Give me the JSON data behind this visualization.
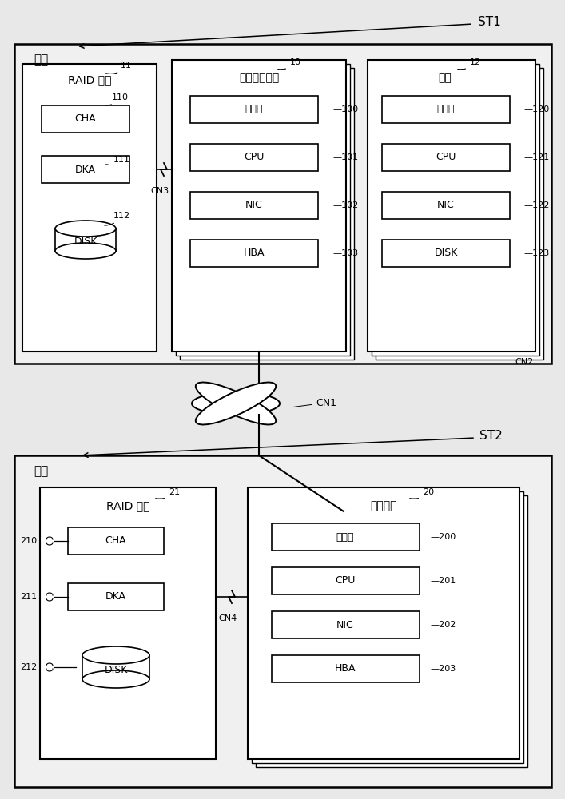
{
  "bg_color": "#e8e8e8",
  "white": "#ffffff",
  "light_gray": "#f0f0f0",
  "black": "#000000",
  "st1_label": "ST1",
  "st2_label": "ST2",
  "cn1_label": "CN1",
  "cn2_label": "CN2",
  "cn3_label": "CN3",
  "cn4_label": "CN4",
  "top_section_label": "边缘",
  "bottom_section_label": "核心",
  "raid_top_label": "RAID 系统",
  "raid_bottom_label": "RAID 系统",
  "file_store_label": "文件存储装置",
  "host_label": "主机",
  "archive_label": "存档装置",
  "ref_11": "11",
  "ref_10": "10",
  "ref_12": "12",
  "ref_21": "21",
  "ref_20": "20",
  "raid_top_items": [
    {
      "label": "CHA",
      "ref": "110",
      "type": "box"
    },
    {
      "label": "DKA",
      "ref": "111",
      "type": "box"
    },
    {
      "label": "DISK",
      "ref": "112",
      "type": "disk"
    }
  ],
  "file_store_items": [
    {
      "label": "存储器",
      "ref": "100"
    },
    {
      "label": "CPU",
      "ref": "101"
    },
    {
      "label": "NIC",
      "ref": "102"
    },
    {
      "label": "HBA",
      "ref": "103"
    }
  ],
  "host_items": [
    {
      "label": "存储器",
      "ref": "120"
    },
    {
      "label": "CPU",
      "ref": "121"
    },
    {
      "label": "NIC",
      "ref": "122"
    },
    {
      "label": "DISK",
      "ref": "123"
    }
  ],
  "raid_bottom_items": [
    {
      "label": "CHA",
      "ref": "210",
      "type": "box"
    },
    {
      "label": "DKA",
      "ref": "211",
      "type": "box"
    },
    {
      "label": "DISK",
      "ref": "212",
      "type": "disk"
    }
  ],
  "archive_items": [
    {
      "label": "存储器",
      "ref": "200"
    },
    {
      "label": "CPU",
      "ref": "201"
    },
    {
      "label": "NIC",
      "ref": "202"
    },
    {
      "label": "HBA",
      "ref": "203"
    }
  ]
}
